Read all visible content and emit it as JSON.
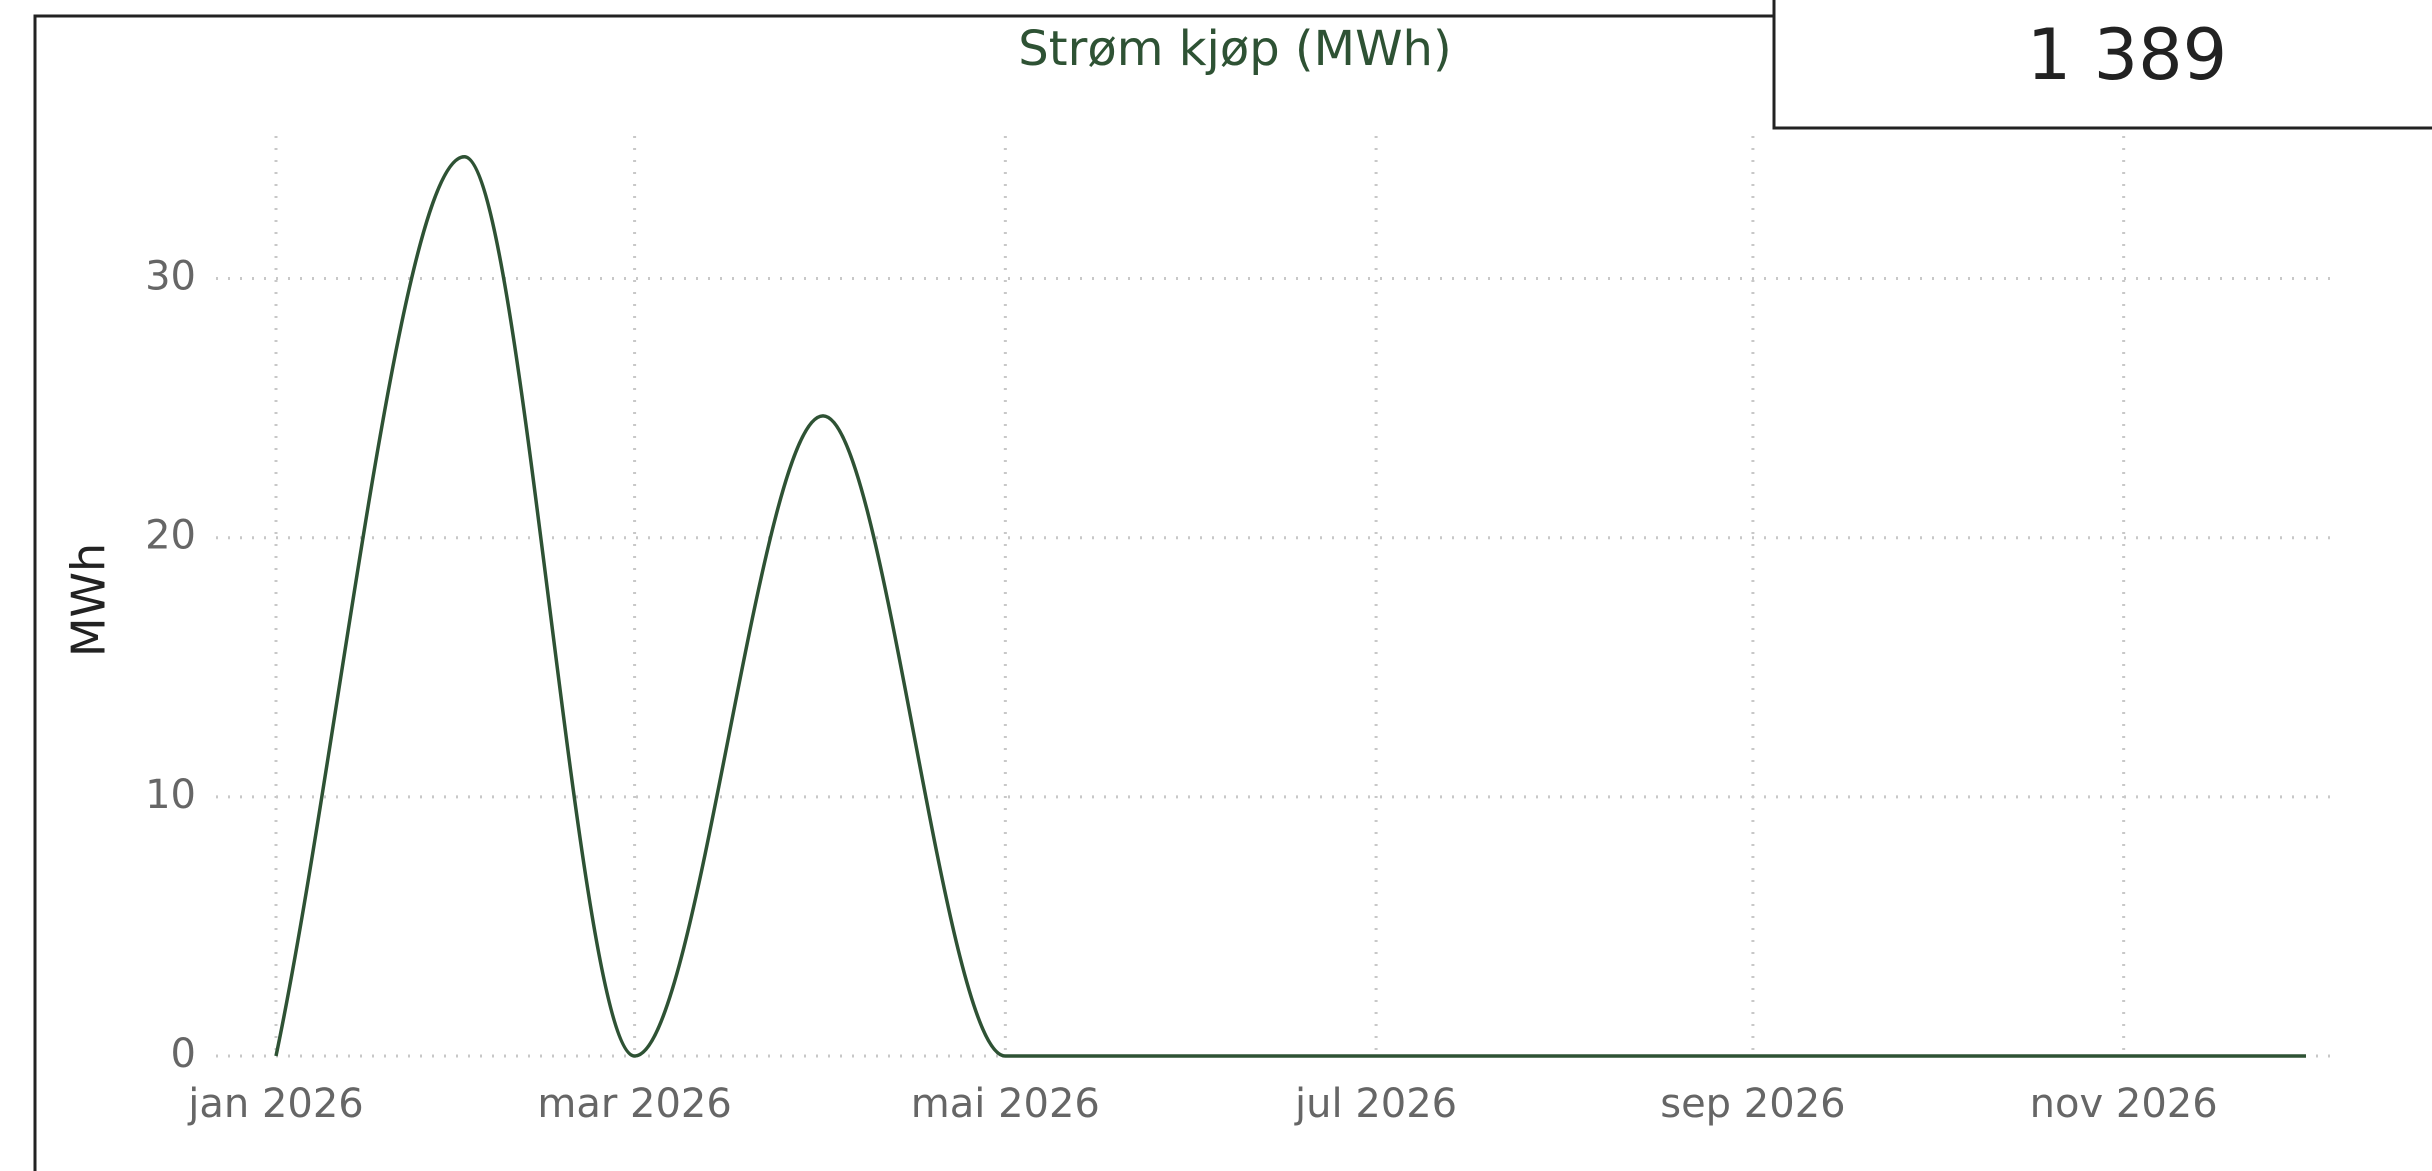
{
  "card": {
    "value": "1 389"
  },
  "chart_data": {
    "type": "line",
    "title": "Strøm kjøp (MWh)",
    "y_label": "MWh",
    "x": [
      "2026-01",
      "2026-02",
      "2026-03",
      "2026-04",
      "2026-05",
      "2026-06",
      "2026-07",
      "2026-08",
      "2026-09",
      "2026-10",
      "2026-11",
      "2026-12"
    ],
    "series": [
      {
        "name": "Strøm kjøp",
        "color": "#2e5234",
        "values": [
          0,
          34.7,
          0,
          24.7,
          0,
          0,
          0,
          0,
          0,
          0,
          0,
          0
        ]
      }
    ],
    "xlim": [
      "2026-01",
      "2026-12"
    ],
    "xticks": [
      {
        "value": "2026-01",
        "label": "jan 2026"
      },
      {
        "value": "2026-03",
        "label": "mar 2026"
      },
      {
        "value": "2026-05",
        "label": "mai 2026"
      },
      {
        "value": "2026-07",
        "label": "jul 2026"
      },
      {
        "value": "2026-09",
        "label": "sep 2026"
      },
      {
        "value": "2026-11",
        "label": "nov 2026"
      }
    ],
    "ylim": [
      0,
      35.5
    ],
    "yticks": [
      0,
      10,
      20,
      30
    ],
    "grid": true,
    "smooth": true
  }
}
